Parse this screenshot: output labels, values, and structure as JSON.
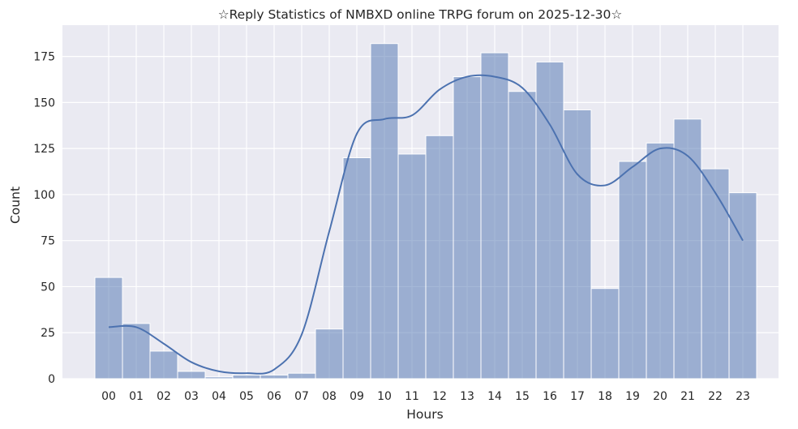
{
  "chart_data": {
    "type": "bar",
    "title": "☆Reply Statistics of NMBXD online TRPG forum on 2025-12-30☆",
    "xlabel": "Hours",
    "ylabel": "Count",
    "categories": [
      "00",
      "01",
      "02",
      "03",
      "04",
      "05",
      "06",
      "07",
      "08",
      "09",
      "10",
      "11",
      "12",
      "13",
      "14",
      "15",
      "16",
      "17",
      "18",
      "19",
      "20",
      "21",
      "22",
      "23"
    ],
    "values": [
      55,
      30,
      15,
      4,
      1,
      2,
      2,
      3,
      27,
      120,
      182,
      122,
      132,
      164,
      177,
      156,
      172,
      146,
      49,
      118,
      128,
      141,
      114,
      101
    ],
    "kde": {
      "x": [
        0,
        1,
        2,
        3,
        4,
        5,
        6,
        7,
        8,
        9,
        10,
        11,
        12,
        13,
        14,
        15,
        16,
        17,
        18,
        19,
        20,
        21,
        22,
        23
      ],
      "y": [
        28,
        28,
        19,
        9,
        4,
        3,
        5,
        24,
        80,
        133,
        141,
        143,
        157,
        164,
        164,
        158,
        138,
        111,
        105,
        115,
        125,
        121,
        101,
        75
      ]
    },
    "ylim": [
      0,
      192
    ],
    "yticks": [
      0,
      25,
      50,
      75,
      100,
      125,
      150,
      175
    ],
    "grid": true,
    "colors": {
      "background": "#eaeaf2",
      "grid": "#ffffff",
      "bar_fill": "#4c72b0",
      "bar_opacity": 0.5,
      "bar_edge": "#ffffff",
      "kde_line": "#4c72b0"
    }
  }
}
